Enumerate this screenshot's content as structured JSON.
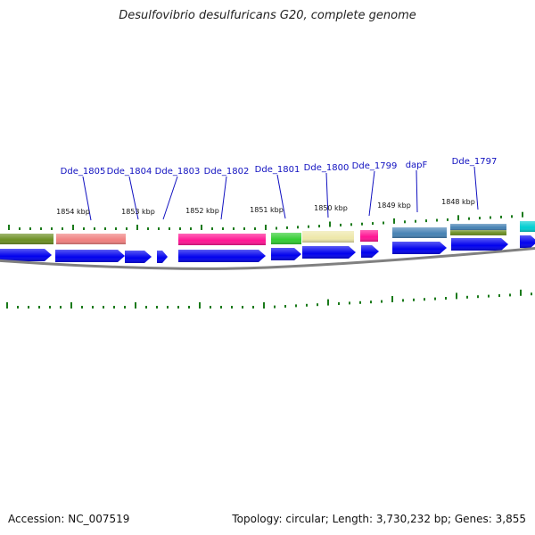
{
  "title": "Desulfovibrio desulfuricans G20, complete genome",
  "footer": {
    "accession": "Accession: NC_007519",
    "topology": "Topology: circular; Length: 3,730,232 bp; Genes: 3,855"
  },
  "gene_labels": [
    "Dde_1805",
    "Dde_1804",
    "Dde_1803",
    "Dde_1802",
    "Dde_1801",
    "Dde_1800",
    "Dde_1799",
    "dapF",
    "Dde_1797"
  ],
  "kbp_labels": [
    "1854 kbp",
    "1853 kbp",
    "1852 kbp",
    "1851 kbp",
    "1850 kbp",
    "1849 kbp",
    "1848 kbp"
  ],
  "colors": {
    "gene_label": "#1010c0",
    "cds": "#0000ee",
    "tick": "#1a7a1a",
    "backbone": "#808080",
    "features": [
      "#6b8e23",
      "#f08080",
      "#ff1493",
      "#32cd32",
      "#eee8aa",
      "#ff1493",
      "#4682b4",
      "#4682b4",
      "#6b8e23",
      "#00ced1"
    ]
  }
}
